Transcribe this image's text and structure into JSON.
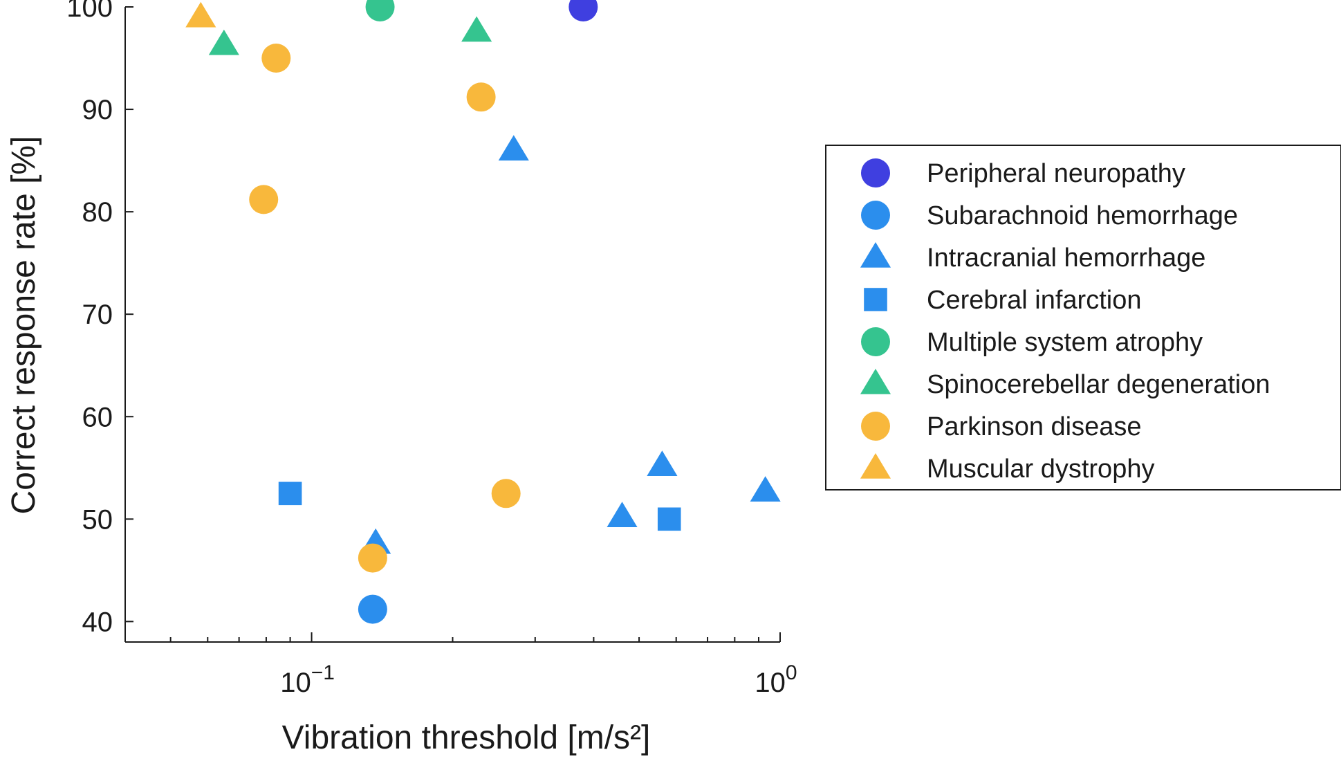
{
  "chart_data": {
    "type": "scatter",
    "xscale": "log",
    "xlim": [
      0.04,
      1.0
    ],
    "ylim": [
      38,
      100
    ],
    "xlabel": "Vibration threshold [m/s²]",
    "ylabel": "Correct response rate [%]",
    "x_ticks": [
      {
        "value": 0.1,
        "base": "10",
        "exp": "−1"
      },
      {
        "value": 1.0,
        "base": "10",
        "exp": "0"
      }
    ],
    "y_ticks": [
      40,
      50,
      60,
      70,
      80,
      90,
      100
    ],
    "grid": false,
    "legend_position": "right",
    "series": [
      {
        "name": "Peripheral neuropathy",
        "marker": "circle",
        "color": "#3f3fe0",
        "points": [
          {
            "x": 0.38,
            "y": 100
          }
        ]
      },
      {
        "name": "Subarachnoid hemorrhage",
        "marker": "circle",
        "color": "#2b8eed",
        "points": [
          {
            "x": 0.135,
            "y": 41.2
          }
        ]
      },
      {
        "name": "Intracranial hemorrhage",
        "marker": "triangle",
        "color": "#2b8eed",
        "points": [
          {
            "x": 0.27,
            "y": 86
          },
          {
            "x": 0.137,
            "y": 47.6
          },
          {
            "x": 0.46,
            "y": 50.2
          },
          {
            "x": 0.56,
            "y": 55.2
          },
          {
            "x": 0.93,
            "y": 52.7
          }
        ]
      },
      {
        "name": "Cerebral infarction",
        "marker": "square",
        "color": "#2b8eed",
        "points": [
          {
            "x": 0.09,
            "y": 52.5
          },
          {
            "x": 0.58,
            "y": 50
          }
        ]
      },
      {
        "name": "Multiple system atrophy",
        "marker": "circle",
        "color": "#35c48f",
        "points": [
          {
            "x": 0.14,
            "y": 100
          }
        ]
      },
      {
        "name": "Spinocerebellar degeneration",
        "marker": "triangle",
        "color": "#35c48f",
        "points": [
          {
            "x": 0.065,
            "y": 96.3
          },
          {
            "x": 0.225,
            "y": 97.6
          }
        ]
      },
      {
        "name": "Parkinson disease",
        "marker": "circle",
        "color": "#f8b83c",
        "points": [
          {
            "x": 0.084,
            "y": 95
          },
          {
            "x": 0.079,
            "y": 81.2
          },
          {
            "x": 0.23,
            "y": 91.2
          },
          {
            "x": 0.26,
            "y": 52.5
          },
          {
            "x": 0.135,
            "y": 46.2
          }
        ]
      },
      {
        "name": "Muscular dystrophy",
        "marker": "triangle",
        "color": "#f8b83c",
        "points": [
          {
            "x": 0.058,
            "y": 99
          }
        ]
      }
    ]
  }
}
